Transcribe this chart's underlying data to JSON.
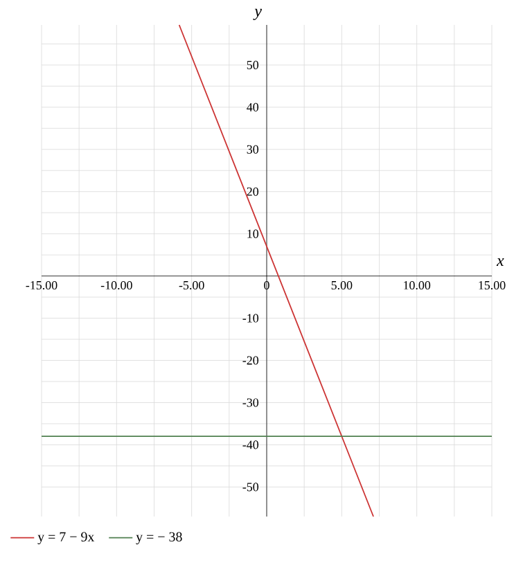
{
  "chart_data": {
    "type": "line",
    "xlabel": "x",
    "ylabel": "y",
    "xlim": [
      -15,
      15
    ],
    "ylim": [
      -57,
      59.5
    ],
    "xticks": [
      {
        "value": -15,
        "label": "-15.00"
      },
      {
        "value": -12.5,
        "label": null
      },
      {
        "value": -10,
        "label": "-10.00"
      },
      {
        "value": -7.5,
        "label": null
      },
      {
        "value": -5,
        "label": "-5.00"
      },
      {
        "value": -2.5,
        "label": null
      },
      {
        "value": 0,
        "label": "0"
      },
      {
        "value": 2.5,
        "label": null
      },
      {
        "value": 5,
        "label": "5.00"
      },
      {
        "value": 7.5,
        "label": null
      },
      {
        "value": 10,
        "label": "10.00"
      },
      {
        "value": 12.5,
        "label": null
      },
      {
        "value": 15,
        "label": "15.00"
      }
    ],
    "yticks": [
      -50,
      {
        "value": -45,
        "label": null
      },
      -40,
      {
        "value": -35,
        "label": null
      },
      -30,
      {
        "value": -25,
        "label": null
      },
      -20,
      {
        "value": -15,
        "label": null
      },
      -10,
      {
        "value": -5,
        "label": null
      },
      {
        "value": 5,
        "label": null
      },
      10,
      {
        "value": 15,
        "label": null
      },
      20,
      {
        "value": 25,
        "label": null
      },
      30,
      {
        "value": 35,
        "label": null
      },
      40,
      {
        "value": 45,
        "label": null
      },
      50,
      {
        "value": 55,
        "label": null
      }
    ],
    "grid": true,
    "legend": "bottom left",
    "marker": "none",
    "series": [
      {
        "name": "y = 7 − 9x",
        "color": "#cc3333",
        "x": [
          -5.83,
          7.11
        ],
        "values": [
          59.5,
          -57
        ]
      },
      {
        "name": "y = − 38",
        "color": "#4f7f4f",
        "x": [
          -15,
          15
        ],
        "values": [
          -38,
          -38
        ]
      }
    ]
  }
}
